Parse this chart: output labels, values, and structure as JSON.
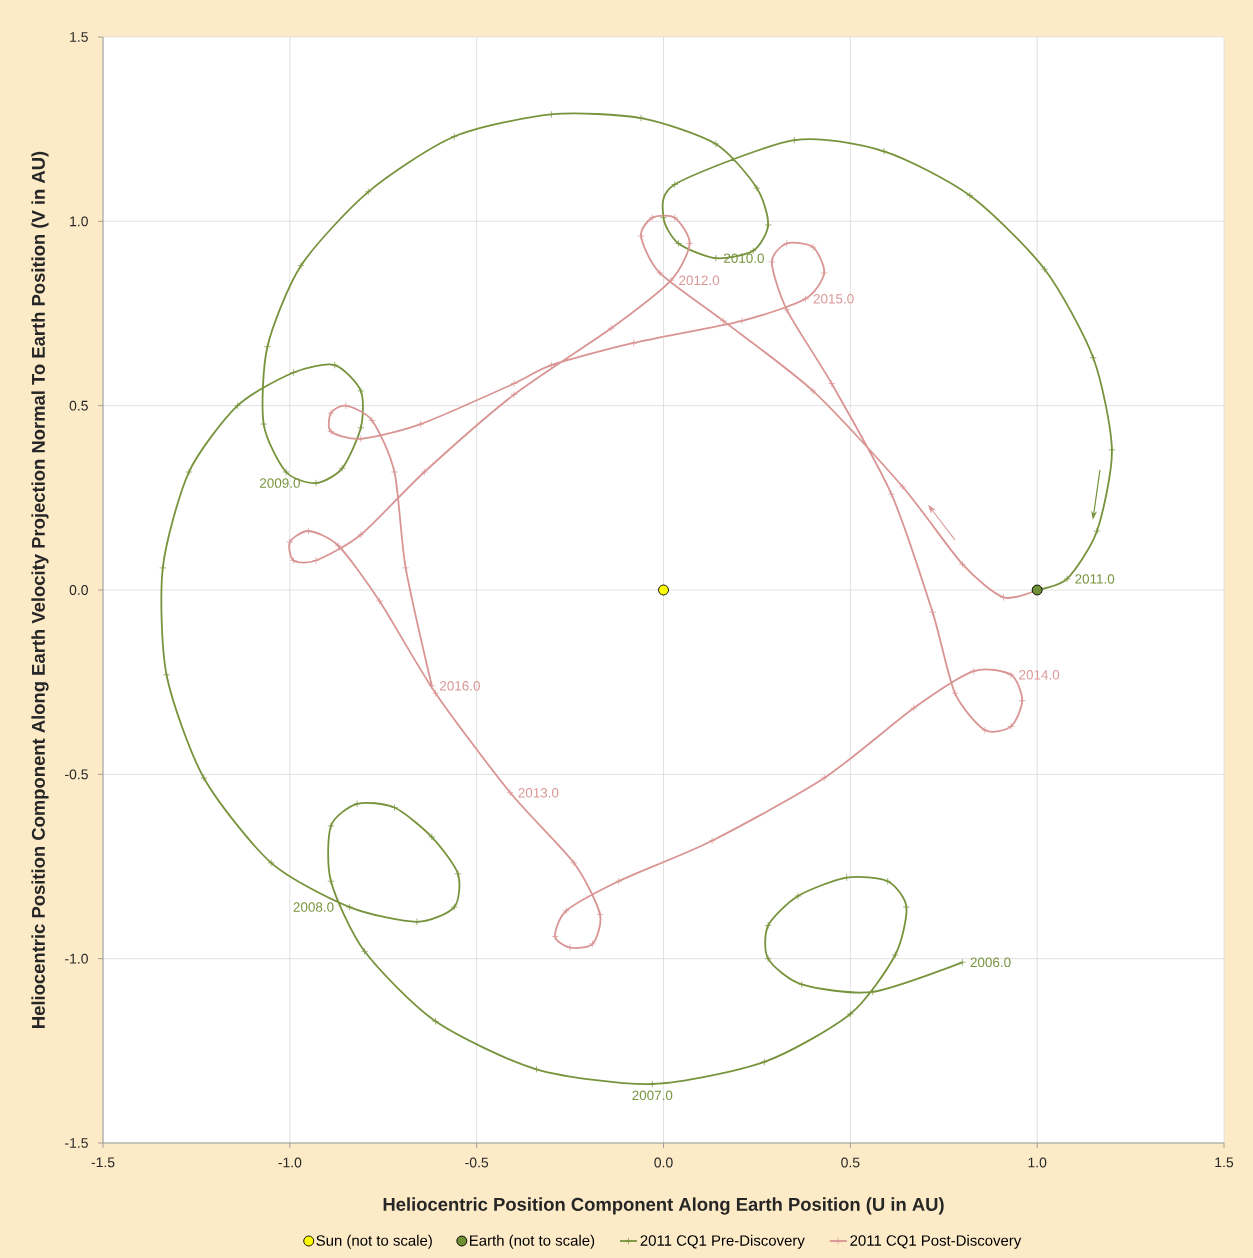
{
  "chart_data": {
    "type": "line",
    "xlabel": "Heliocentric Position Component Along Earth Position (U in AU)",
    "ylabel": "Heliocentric Position Component Along Earth Velocity Projection Normal To Earth Position (V in AU)",
    "xlim": [
      -1.5,
      1.5
    ],
    "ylim": [
      -1.5,
      1.5
    ],
    "xticks": [
      {
        "value": -1.5,
        "label": "-1.5"
      },
      {
        "value": -1.0,
        "label": "-1.0"
      },
      {
        "value": -0.5,
        "label": "-0.5"
      },
      {
        "value": 0.0,
        "label": "0.0"
      },
      {
        "value": 0.5,
        "label": "0.5"
      },
      {
        "value": 1.0,
        "label": "1.0"
      },
      {
        "value": 1.5,
        "label": "1.5"
      }
    ],
    "yticks": [
      {
        "value": -1.5,
        "label": "-1.5"
      },
      {
        "value": -1.0,
        "label": "-1.0"
      },
      {
        "value": -0.5,
        "label": "-0.5"
      },
      {
        "value": 0.0,
        "label": "0.0"
      },
      {
        "value": 0.5,
        "label": "0.5"
      },
      {
        "value": 1.0,
        "label": "1.0"
      },
      {
        "value": 1.5,
        "label": "1.5"
      }
    ],
    "grid": true,
    "legend": "bottom",
    "series": [
      {
        "name": "Sun (not to scale)",
        "type": "scatter",
        "marker": "circle",
        "color": "#ffff00",
        "x": [
          0.0
        ],
        "values": [
          0.0
        ]
      },
      {
        "name": "Earth (not to scale)",
        "type": "scatter",
        "marker": "circle",
        "color": "#6f8f35",
        "x": [
          1.0
        ],
        "values": [
          0.0
        ]
      },
      {
        "name": "2011 CQ1 Pre-Discovery",
        "marker": "cross",
        "color": "#77933c",
        "x": [
          0.8,
          0.56,
          0.37,
          0.28,
          0.28,
          0.36,
          0.49,
          0.6,
          0.65,
          0.62,
          0.5,
          0.27,
          -0.03,
          -0.34,
          -0.61,
          -0.8,
          -0.89,
          -0.89,
          -0.82,
          -0.72,
          -0.62,
          -0.55,
          -0.56,
          -0.66,
          -0.84,
          -1.05,
          -1.23,
          -1.33,
          -1.34,
          -1.27,
          -1.14,
          -0.99,
          -0.88,
          -0.81,
          -0.81,
          -0.86,
          -0.93,
          -1.01,
          -1.07,
          -1.06,
          -0.97,
          -0.79,
          -0.56,
          -0.3,
          -0.06,
          0.14,
          0.25,
          0.28,
          0.24,
          0.14,
          0.04,
          0.0,
          0.03,
          0.35,
          0.59,
          0.82,
          1.02,
          1.15,
          1.2,
          1.16,
          1.08,
          1.0
        ],
        "values": [
          -1.01,
          -1.09,
          -1.07,
          -1.0,
          -0.91,
          -0.83,
          -0.78,
          -0.79,
          -0.86,
          -0.99,
          -1.15,
          -1.28,
          -1.34,
          -1.3,
          -1.17,
          -0.98,
          -0.79,
          -0.64,
          -0.58,
          -0.59,
          -0.67,
          -0.77,
          -0.86,
          -0.9,
          -0.86,
          -0.74,
          -0.51,
          -0.23,
          0.06,
          0.32,
          0.5,
          0.59,
          0.61,
          0.54,
          0.44,
          0.33,
          0.29,
          0.32,
          0.45,
          0.66,
          0.88,
          1.08,
          1.23,
          1.29,
          1.28,
          1.21,
          1.09,
          0.99,
          0.92,
          0.9,
          0.94,
          1.01,
          1.1,
          1.22,
          1.19,
          1.07,
          0.87,
          0.63,
          0.38,
          0.16,
          0.03,
          0.0
        ]
      },
      {
        "name": "2011 CQ1 Post-Discovery",
        "marker": "cross",
        "color": "#d99594",
        "x": [
          1.0,
          0.91,
          0.8,
          0.64,
          0.4,
          0.16,
          -0.01,
          -0.06,
          -0.03,
          0.03,
          0.07,
          0.02,
          -0.14,
          -0.4,
          -0.64,
          -0.81,
          -0.93,
          -0.99,
          -1.0,
          -0.95,
          -0.87,
          -0.76,
          -0.61,
          -0.41,
          -0.24,
          -0.17,
          -0.19,
          -0.25,
          -0.29,
          -0.26,
          -0.12,
          0.13,
          0.43,
          0.67,
          0.83,
          0.93,
          0.96,
          0.93,
          0.86,
          0.78,
          0.72,
          0.61,
          0.45,
          0.33,
          0.29,
          0.33,
          0.4,
          0.43,
          0.38,
          0.21,
          -0.08,
          -0.3,
          -0.4,
          -0.65,
          -0.81,
          -0.89,
          -0.89,
          -0.85,
          -0.78,
          -0.72,
          -0.69,
          -0.62
        ],
        "values": [
          0.0,
          -0.02,
          0.07,
          0.28,
          0.54,
          0.73,
          0.86,
          0.96,
          1.01,
          1.01,
          0.94,
          0.84,
          0.71,
          0.53,
          0.32,
          0.15,
          0.08,
          0.08,
          0.13,
          0.16,
          0.12,
          -0.03,
          -0.28,
          -0.55,
          -0.74,
          -0.88,
          -0.96,
          -0.97,
          -0.94,
          -0.87,
          -0.79,
          -0.68,
          -0.51,
          -0.32,
          -0.22,
          -0.23,
          -0.3,
          -0.37,
          -0.38,
          -0.28,
          -0.06,
          0.26,
          0.56,
          0.76,
          0.89,
          0.94,
          0.93,
          0.86,
          0.79,
          0.73,
          0.67,
          0.61,
          0.56,
          0.45,
          0.41,
          0.43,
          0.48,
          0.5,
          0.46,
          0.32,
          0.06,
          -0.26
        ]
      }
    ],
    "annotations": [
      {
        "text": "2006.0",
        "x": 0.8,
        "y": -1.01
      },
      {
        "text": "2007.0",
        "x": -0.03,
        "y": -1.34
      },
      {
        "text": "2008.0",
        "x": -0.84,
        "y": -0.86
      },
      {
        "text": "2009.0",
        "x": -0.93,
        "y": 0.29
      },
      {
        "text": "2010.0",
        "x": 0.14,
        "y": 0.9
      },
      {
        "text": "2011.0",
        "x": 1.08,
        "y": 0.03
      },
      {
        "text": "2012.0",
        "x": 0.02,
        "y": 0.84
      },
      {
        "text": "2013.0",
        "x": -0.41,
        "y": -0.55
      },
      {
        "text": "2014.0",
        "x": 0.93,
        "y": -0.23
      },
      {
        "text": "2015.0",
        "x": 0.38,
        "y": 0.79
      },
      {
        "text": "2016.0",
        "x": -0.62,
        "y": -0.26
      }
    ]
  }
}
